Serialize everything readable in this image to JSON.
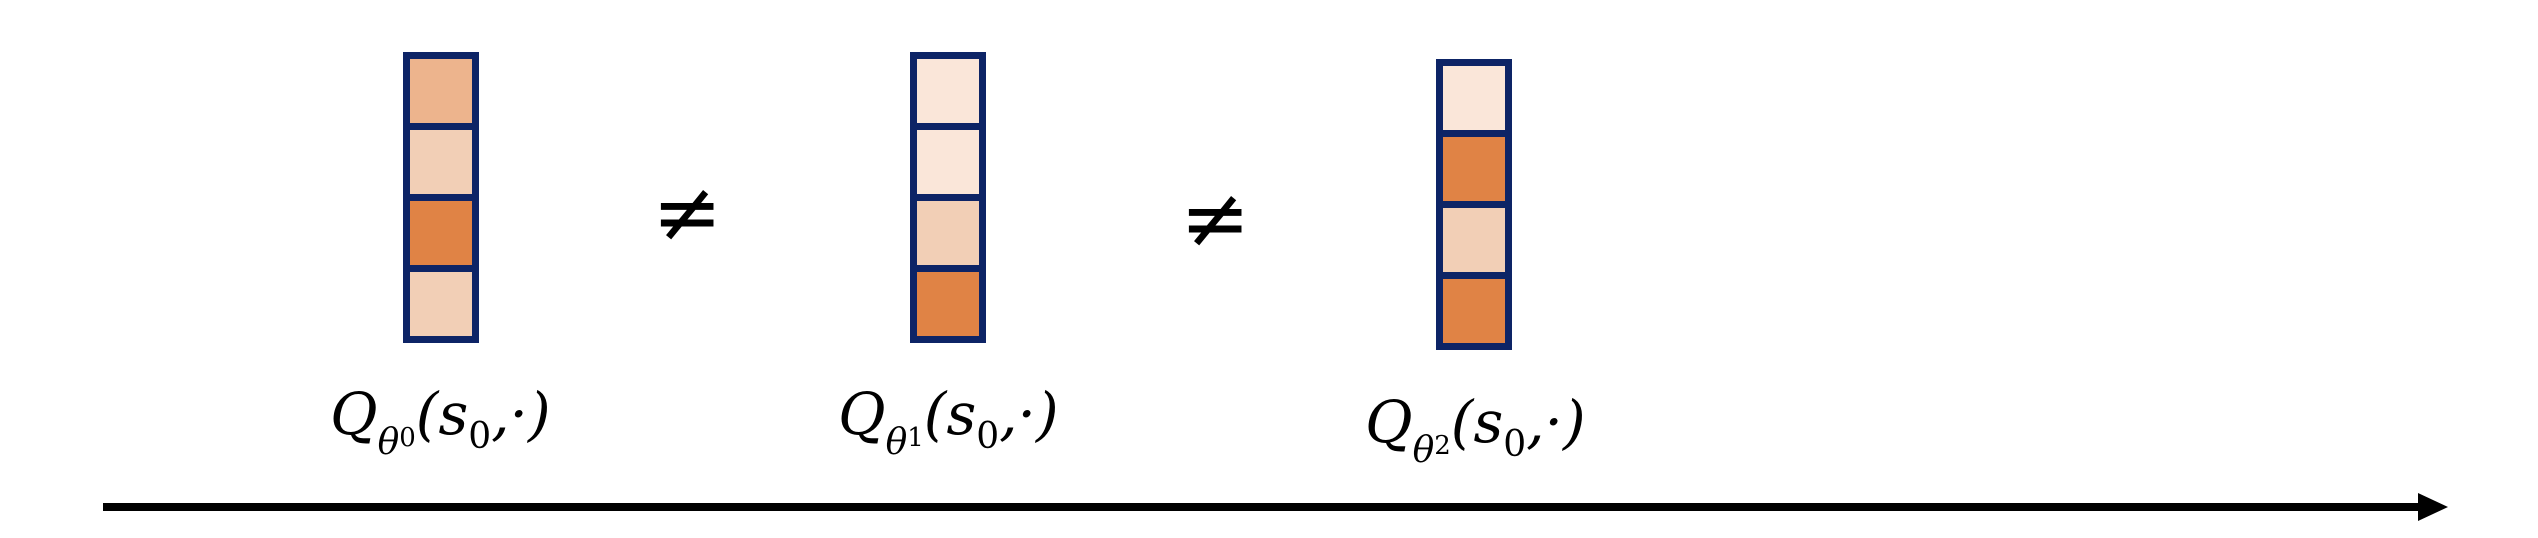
{
  "colors": {
    "border": "#0d2466",
    "shade_light": "#fae6d9",
    "shade_medium": "#f2cfb6",
    "shade_mid": "#edb48d",
    "shade_dark": "#e08345"
  },
  "columns": [
    {
      "cells": [
        "#edb48d",
        "#f2cfb6",
        "#e08345",
        "#f2cfb6"
      ],
      "label": {
        "q": "Q",
        "theta": "θ",
        "idx": "0",
        "args_open": "(",
        "s": "s",
        "s_idx": "0",
        "args_close": ",·)"
      }
    },
    {
      "cells": [
        "#fae6d9",
        "#fae6d9",
        "#f2cfb6",
        "#e08345"
      ],
      "label": {
        "q": "Q",
        "theta": "θ",
        "idx": "1",
        "args_open": "(",
        "s": "s",
        "s_idx": "0",
        "args_close": ",·)"
      }
    },
    {
      "cells": [
        "#fae6d9",
        "#e08345",
        "#f2cfb6",
        "#e08345"
      ],
      "label": {
        "q": "Q",
        "theta": "θ",
        "idx": "2",
        "args_open": "(",
        "s": "s",
        "s_idx": "0",
        "args_close": ",·)"
      }
    }
  ],
  "operators": [
    "≠",
    "≠"
  ]
}
